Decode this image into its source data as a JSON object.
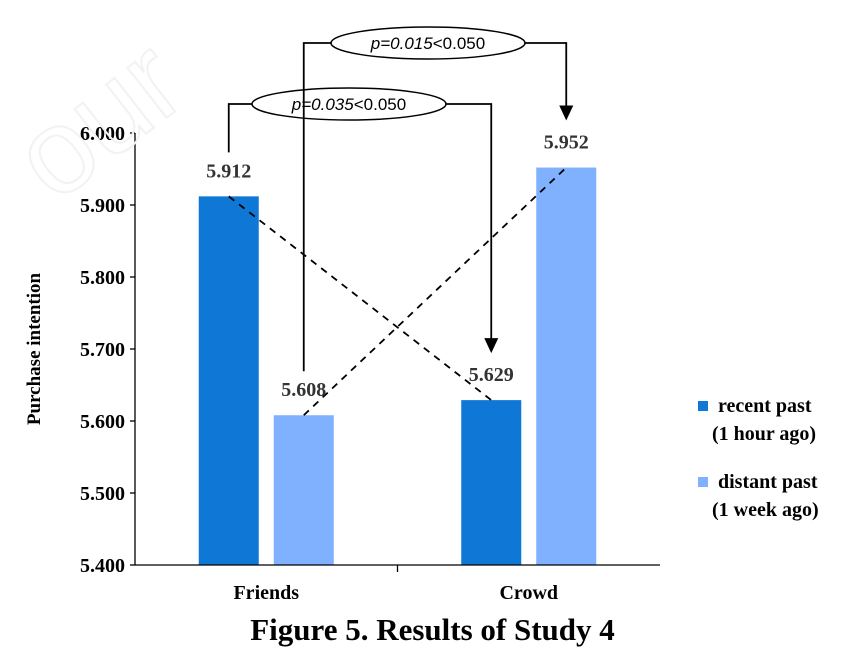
{
  "chart_data": {
    "type": "bar",
    "categories": [
      "Friends",
      "Crowd"
    ],
    "series": [
      {
        "name": "recent past\n(1 hour ago)",
        "values": [
          5.912,
          5.629
        ],
        "color": "#0F77D6"
      },
      {
        "name": "distant past\n(1 week ago)",
        "values": [
          5.608,
          5.952
        ],
        "color": "#7FB1FF"
      }
    ],
    "data_labels": [
      [
        "5.912",
        "5.629"
      ],
      [
        "5.608",
        "5.952"
      ]
    ],
    "ylabel": "Purchase intention",
    "xlabel": "",
    "ylim": [
      5.4,
      6.0
    ],
    "yticks": [
      "5.400",
      "5.500",
      "5.600",
      "5.700",
      "5.800",
      "5.900",
      "6.000"
    ],
    "grid": false,
    "legend_position": "right",
    "annotations": [
      {
        "p_label": "p=0.035",
        "comparison": "<0.050",
        "from": "recent past / Friends",
        "to": "recent past / Crowd"
      },
      {
        "p_label": "p=0.015",
        "comparison": "<0.050",
        "from": "distant past / Friends",
        "to": "distant past / Crowd"
      }
    ]
  },
  "legend": {
    "items": [
      {
        "line1": "recent past",
        "line2": "(1 hour ago)",
        "color": "#0F77D6"
      },
      {
        "line1": "distant past",
        "line2": "(1 week ago)",
        "color": "#7FB1FF"
      }
    ]
  },
  "caption": "Figure 5. Results of Study 4"
}
